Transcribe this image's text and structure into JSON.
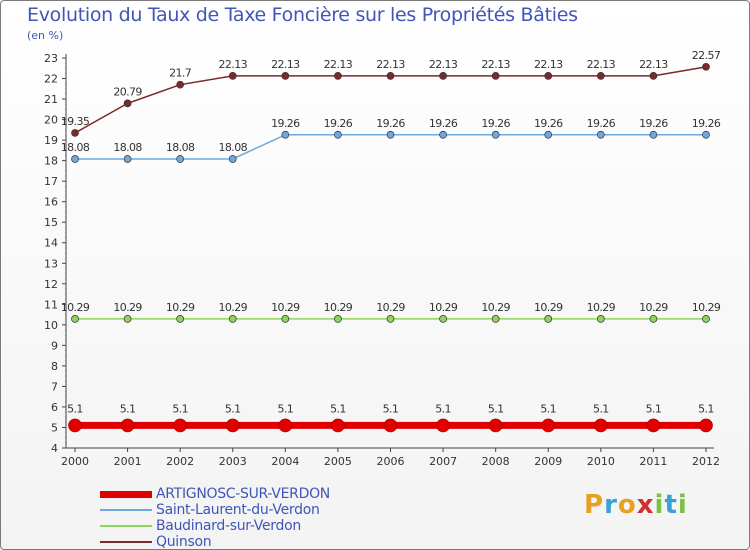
{
  "chart_data": {
    "type": "line",
    "title": "Evolution du Taux de Taxe Foncière sur les Propriétés Bâties",
    "ylabel": "(en %)",
    "xlabel": "",
    "categories": [
      "2000",
      "2001",
      "2002",
      "2003",
      "2004",
      "2005",
      "2006",
      "2007",
      "2008",
      "2009",
      "2010",
      "2011",
      "2012"
    ],
    "ylim": [
      4,
      23
    ],
    "yticks": [
      "4",
      "5",
      "6",
      "7",
      "8",
      "9",
      "10",
      "11",
      "12",
      "13",
      "14",
      "15",
      "16",
      "17",
      "18",
      "19",
      "20",
      "21",
      "22",
      "23"
    ],
    "grid": false,
    "legend_position": "bottom-left",
    "series": [
      {
        "name": "ARTIGNOSC-SUR-VERDON",
        "color": "#e00000",
        "values": [
          5.1,
          5.1,
          5.1,
          5.1,
          5.1,
          5.1,
          5.1,
          5.1,
          5.1,
          5.1,
          5.1,
          5.1,
          5.1
        ],
        "labels": [
          "5.1",
          "5.1",
          "5.1",
          "5.1",
          "5.1",
          "5.1",
          "5.1",
          "5.1",
          "5.1",
          "5.1",
          "5.1",
          "5.1",
          "5.1"
        ]
      },
      {
        "name": "Saint-Laurent-du-Verdon",
        "color": "#6fa8dc",
        "values": [
          18.08,
          18.08,
          18.08,
          18.08,
          19.26,
          19.26,
          19.26,
          19.26,
          19.26,
          19.26,
          19.26,
          19.26,
          19.26
        ],
        "labels": [
          "18.08",
          "18.08",
          "18.08",
          "18.08",
          "19.26",
          "19.26",
          "19.26",
          "19.26",
          "19.26",
          "19.26",
          "19.26",
          "19.26",
          "19.26"
        ]
      },
      {
        "name": "Baudinard-sur-Verdon",
        "color": "#8fd45a",
        "values": [
          10.29,
          10.29,
          10.29,
          10.29,
          10.29,
          10.29,
          10.29,
          10.29,
          10.29,
          10.29,
          10.29,
          10.29,
          10.29
        ],
        "labels": [
          "10.29",
          "10.29",
          "10.29",
          "10.29",
          "10.29",
          "10.29",
          "10.29",
          "10.29",
          "10.29",
          "10.29",
          "10.29",
          "10.29",
          "10.29"
        ]
      },
      {
        "name": "Quinson",
        "color": "#7b2a2a",
        "values": [
          19.35,
          20.79,
          21.7,
          22.13,
          22.13,
          22.13,
          22.13,
          22.13,
          22.13,
          22.13,
          22.13,
          22.13,
          22.57
        ],
        "labels": [
          "19.35",
          "20.79",
          "21.7",
          "22.13",
          "22.13",
          "22.13",
          "22.13",
          "22.13",
          "22.13",
          "22.13",
          "22.13",
          "22.13",
          "22.57"
        ]
      }
    ]
  },
  "logo": {
    "letters": [
      "P",
      "r",
      "o",
      "x",
      "i",
      "t",
      "i"
    ],
    "colors": [
      "#e8a020",
      "#3aa0d8",
      "#e8a020",
      "#d03030",
      "#7cc242",
      "#3aa0d8",
      "#7cc242"
    ]
  }
}
